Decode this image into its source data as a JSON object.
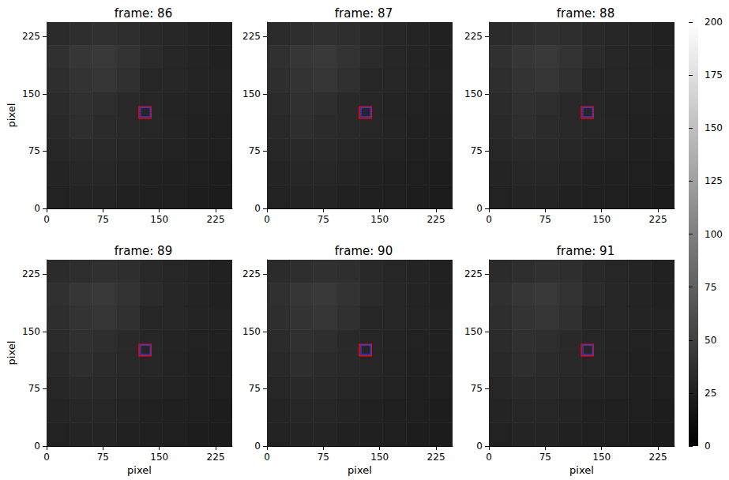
{
  "chart_data": [
    {
      "type": "heatmap",
      "title": "frame: 86",
      "ylabel": "pixel",
      "xlim": [
        0,
        247
      ],
      "ylim": [
        0,
        244
      ],
      "xticks": [
        0,
        75,
        150,
        225
      ],
      "yticks": [
        0,
        75,
        150,
        225
      ],
      "cells": [
        [
          34,
          36,
          38,
          36,
          32,
          30,
          28,
          26
        ],
        [
          38,
          42,
          44,
          40,
          34,
          30,
          28,
          26
        ],
        [
          36,
          40,
          42,
          38,
          30,
          30,
          28,
          27
        ],
        [
          34,
          38,
          36,
          32,
          30,
          28,
          27,
          26
        ],
        [
          32,
          36,
          34,
          32,
          30,
          28,
          26,
          25
        ],
        [
          30,
          32,
          32,
          30,
          28,
          27,
          25,
          24
        ],
        [
          28,
          30,
          30,
          28,
          26,
          25,
          24,
          23
        ],
        [
          27,
          28,
          28,
          26,
          25,
          24,
          23,
          22
        ]
      ],
      "boxes": [
        {
          "color": "#ff0000",
          "x": [
            123,
            139
          ],
          "y": [
            118,
            133
          ]
        },
        {
          "color": "#2a3cd6",
          "x": [
            125,
            138
          ],
          "y": [
            120,
            132
          ]
        }
      ]
    },
    {
      "type": "heatmap",
      "title": "frame: 87",
      "xlim": [
        0,
        247
      ],
      "ylim": [
        0,
        244
      ],
      "xticks": [
        0,
        75,
        150,
        225
      ],
      "yticks": [
        0,
        75,
        150,
        225
      ],
      "cells": [
        [
          34,
          36,
          38,
          36,
          32,
          30,
          28,
          26
        ],
        [
          38,
          42,
          44,
          40,
          34,
          30,
          28,
          26
        ],
        [
          36,
          40,
          42,
          38,
          30,
          30,
          28,
          27
        ],
        [
          34,
          38,
          36,
          32,
          30,
          28,
          27,
          26
        ],
        [
          32,
          36,
          34,
          32,
          30,
          28,
          26,
          25
        ],
        [
          30,
          32,
          32,
          30,
          28,
          27,
          25,
          24
        ],
        [
          28,
          30,
          30,
          28,
          26,
          25,
          24,
          23
        ],
        [
          27,
          28,
          28,
          26,
          25,
          24,
          23,
          22
        ]
      ],
      "boxes": [
        {
          "color": "#ff0000",
          "x": [
            123,
            139
          ],
          "y": [
            118,
            133
          ]
        },
        {
          "color": "#2a3cd6",
          "x": [
            125,
            138
          ],
          "y": [
            120,
            132
          ]
        }
      ]
    },
    {
      "type": "heatmap",
      "title": "frame: 88",
      "xlim": [
        0,
        247
      ],
      "ylim": [
        0,
        244
      ],
      "xticks": [
        0,
        75,
        150,
        225
      ],
      "yticks": [
        0,
        75,
        150,
        225
      ],
      "cells": [
        [
          34,
          36,
          38,
          36,
          32,
          30,
          28,
          26
        ],
        [
          38,
          42,
          44,
          40,
          34,
          30,
          28,
          26
        ],
        [
          36,
          40,
          42,
          38,
          30,
          30,
          28,
          27
        ],
        [
          34,
          38,
          36,
          32,
          30,
          28,
          27,
          26
        ],
        [
          32,
          36,
          34,
          32,
          30,
          28,
          26,
          25
        ],
        [
          30,
          32,
          32,
          30,
          28,
          27,
          25,
          24
        ],
        [
          28,
          30,
          30,
          28,
          26,
          25,
          24,
          23
        ],
        [
          27,
          28,
          28,
          26,
          25,
          24,
          23,
          22
        ]
      ],
      "boxes": [
        {
          "color": "#ff0000",
          "x": [
            123,
            139
          ],
          "y": [
            118,
            133
          ]
        },
        {
          "color": "#2a3cd6",
          "x": [
            125,
            138
          ],
          "y": [
            120,
            132
          ]
        }
      ]
    },
    {
      "type": "heatmap",
      "title": "frame: 89",
      "xlabel": "pixel",
      "ylabel": "pixel",
      "xlim": [
        0,
        247
      ],
      "ylim": [
        0,
        244
      ],
      "xticks": [
        0,
        75,
        150,
        225
      ],
      "yticks": [
        0,
        75,
        150,
        225
      ],
      "cells": [
        [
          34,
          36,
          38,
          36,
          32,
          30,
          28,
          26
        ],
        [
          38,
          42,
          44,
          40,
          34,
          30,
          28,
          26
        ],
        [
          36,
          40,
          42,
          38,
          30,
          30,
          28,
          27
        ],
        [
          34,
          38,
          36,
          32,
          30,
          28,
          27,
          26
        ],
        [
          32,
          36,
          34,
          32,
          30,
          28,
          26,
          25
        ],
        [
          30,
          32,
          32,
          30,
          28,
          27,
          25,
          24
        ],
        [
          28,
          30,
          30,
          28,
          26,
          25,
          24,
          23
        ],
        [
          27,
          28,
          28,
          26,
          25,
          24,
          23,
          22
        ]
      ],
      "boxes": [
        {
          "color": "#ff0000",
          "x": [
            123,
            139
          ],
          "y": [
            118,
            133
          ]
        },
        {
          "color": "#2a3cd6",
          "x": [
            125,
            138
          ],
          "y": [
            120,
            132
          ]
        }
      ]
    },
    {
      "type": "heatmap",
      "title": "frame: 90",
      "xlabel": "pixel",
      "xlim": [
        0,
        247
      ],
      "ylim": [
        0,
        244
      ],
      "xticks": [
        0,
        75,
        150,
        225
      ],
      "yticks": [
        0,
        75,
        150,
        225
      ],
      "cells": [
        [
          34,
          36,
          38,
          36,
          32,
          30,
          28,
          26
        ],
        [
          38,
          42,
          44,
          40,
          34,
          30,
          28,
          26
        ],
        [
          36,
          40,
          42,
          38,
          30,
          30,
          28,
          27
        ],
        [
          34,
          38,
          36,
          32,
          30,
          28,
          27,
          26
        ],
        [
          32,
          36,
          34,
          32,
          30,
          28,
          26,
          25
        ],
        [
          30,
          32,
          32,
          30,
          28,
          27,
          25,
          24
        ],
        [
          28,
          30,
          30,
          28,
          26,
          25,
          24,
          23
        ],
        [
          27,
          28,
          28,
          26,
          25,
          24,
          23,
          22
        ]
      ],
      "boxes": [
        {
          "color": "#ff0000",
          "x": [
            123,
            139
          ],
          "y": [
            118,
            133
          ]
        },
        {
          "color": "#2a3cd6",
          "x": [
            125,
            138
          ],
          "y": [
            120,
            132
          ]
        }
      ]
    },
    {
      "type": "heatmap",
      "title": "frame: 91",
      "xlabel": "pixel",
      "xlim": [
        0,
        247
      ],
      "ylim": [
        0,
        244
      ],
      "xticks": [
        0,
        75,
        150,
        225
      ],
      "yticks": [
        0,
        75,
        150,
        225
      ],
      "cells": [
        [
          34,
          36,
          38,
          36,
          32,
          30,
          28,
          26
        ],
        [
          38,
          42,
          44,
          40,
          34,
          30,
          28,
          26
        ],
        [
          36,
          40,
          42,
          38,
          30,
          30,
          28,
          27
        ],
        [
          34,
          38,
          36,
          32,
          30,
          28,
          27,
          26
        ],
        [
          32,
          36,
          34,
          32,
          30,
          28,
          26,
          25
        ],
        [
          30,
          32,
          32,
          30,
          28,
          27,
          25,
          24
        ],
        [
          28,
          30,
          30,
          28,
          26,
          25,
          24,
          23
        ],
        [
          27,
          28,
          28,
          26,
          25,
          24,
          23,
          22
        ]
      ],
      "boxes": [
        {
          "color": "#ff0000",
          "x": [
            123,
            139
          ],
          "y": [
            118,
            133
          ]
        },
        {
          "color": "#2a3cd6",
          "x": [
            125,
            138
          ],
          "y": [
            120,
            132
          ]
        }
      ]
    }
  ],
  "colorbar": {
    "range": [
      0,
      200
    ],
    "ticks": [
      0,
      25,
      50,
      75,
      100,
      125,
      150,
      175,
      200
    ]
  }
}
